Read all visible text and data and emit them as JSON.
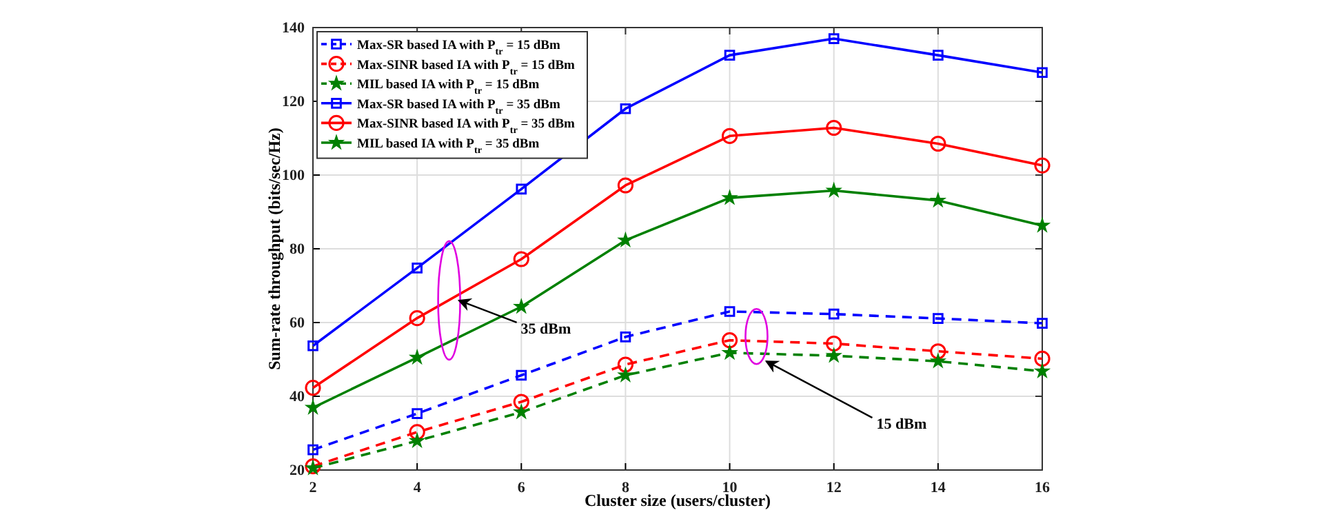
{
  "chart_data": {
    "type": "line",
    "xlabel": "Cluster size (users/cluster)",
    "ylabel": "Sum-rate throughput (bits/sec/Hz)",
    "x": [
      2,
      4,
      6,
      8,
      10,
      12,
      14,
      16
    ],
    "xlim": [
      2,
      16
    ],
    "xticks": [
      2,
      4,
      6,
      8,
      10,
      12,
      14,
      16
    ],
    "ylim": [
      20,
      140
    ],
    "yticks": [
      20,
      40,
      60,
      80,
      100,
      120,
      140
    ],
    "grid": true,
    "legend": "top left",
    "series": [
      {
        "name": "Max-SR based IA with P$_{tr}$ = 15 dBm",
        "color": "#0000ff",
        "marker": "square",
        "line_style": "dashed",
        "values": [
          25.5,
          35.3,
          45.7,
          56.1,
          63,
          62.3,
          61.1,
          59.8
        ]
      },
      {
        "name": "Max-SINR based IA with P$_{tr}$ = 15 dBm",
        "color": "#ff0000",
        "marker": "circle",
        "line_style": "dashed",
        "values": [
          21,
          30.3,
          38.5,
          48.6,
          55.2,
          54.3,
          52.2,
          50.2
        ]
      },
      {
        "name": "MIL based IA with P$_{tr}$ = 15 dBm",
        "color": "#008000",
        "marker": "star",
        "line_style": "dashed",
        "values": [
          20.5,
          27.9,
          35.7,
          45.7,
          51.8,
          51,
          49.5,
          46.8
        ]
      },
      {
        "name": "Max-SR based IA with P$_{tr}$ = 35 dBm",
        "color": "#0000ff",
        "marker": "square",
        "line_style": "solid",
        "values": [
          53.7,
          74.8,
          96.2,
          118,
          132.5,
          137,
          132.5,
          127.8
        ]
      },
      {
        "name": "Max-SINR based IA with P$_{tr}$ = 35 dBm",
        "color": "#ff0000",
        "marker": "circle",
        "line_style": "solid",
        "values": [
          42.3,
          61.2,
          77.2,
          97.2,
          110.6,
          112.8,
          108.5,
          102.6
        ]
      },
      {
        "name": "MIL based IA with P$_{tr}$ = 35 dBm",
        "color": "#008000",
        "marker": "star",
        "line_style": "solid",
        "values": [
          36.9,
          50.5,
          64.3,
          82.3,
          93.8,
          95.8,
          93.1,
          86.3
        ]
      }
    ],
    "annotations": [
      {
        "text": "35 dBm",
        "x": 4.8,
        "y": 66
      },
      {
        "text": "15 dBm",
        "x": 10.7,
        "y": 49.5
      }
    ]
  }
}
